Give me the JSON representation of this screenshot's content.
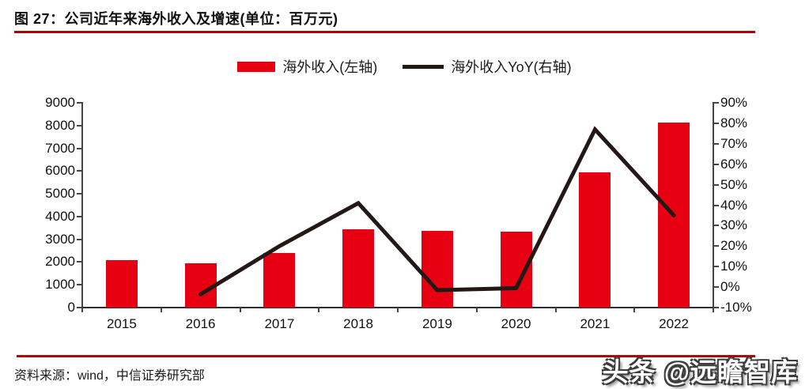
{
  "title": "图 27：公司近年来海外收入及增速(单位：百万元)",
  "footer": {
    "source": "资料来源：wind，中信证券研究部"
  },
  "watermark": "头条 @远瞻智库",
  "colors": {
    "bar": "#e60012",
    "line": "#231815",
    "rule": "#b30000",
    "axis": "#454545"
  },
  "chart_data": {
    "type": "bar+line",
    "title": "公司近年来海外收入及增速(单位：百万元)",
    "categories": [
      "2015",
      "2016",
      "2017",
      "2018",
      "2019",
      "2020",
      "2021",
      "2022"
    ],
    "series": [
      {
        "name": "海外收入(左轴)",
        "type": "bar",
        "axis": "left",
        "values": [
          2090,
          1960,
          2400,
          3440,
          3370,
          3340,
          5940,
          8130
        ]
      },
      {
        "name": "海外收入YoY(右轴)",
        "type": "line",
        "axis": "right",
        "unit": "%",
        "values": [
          null,
          -3.5,
          20,
          41,
          -1.5,
          -0.5,
          77,
          35
        ]
      }
    ],
    "left_axis": {
      "min": 0,
      "max": 9000,
      "step": 1000,
      "tick_labels": [
        "9000",
        "8000",
        "7000",
        "6000",
        "5000",
        "4000",
        "3000",
        "2000",
        "1000",
        "0"
      ]
    },
    "right_axis": {
      "min": -10,
      "max": 90,
      "step": 10,
      "tick_labels": [
        "90%",
        "80%",
        "70%",
        "60%",
        "50%",
        "40%",
        "30%",
        "20%",
        "10%",
        "0%",
        "-10%"
      ]
    },
    "grid": false,
    "legend_position": "top-center"
  }
}
